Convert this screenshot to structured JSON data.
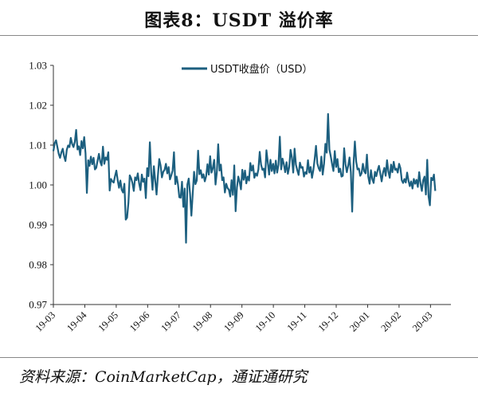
{
  "header": {
    "title": "图表8：USDT 溢价率"
  },
  "footer": {
    "source": "资料来源：CoinMarketCap，通证通研究"
  },
  "chart_data": {
    "type": "line",
    "title": "图表8：USDT 溢价率",
    "xlabel": "",
    "ylabel": "",
    "ylim": [
      0.97,
      1.03
    ],
    "yticks": [
      "1.03",
      "1.02",
      "1.01",
      "1.00",
      "0.99",
      "0.98",
      "0.97"
    ],
    "xticks": [
      "19-03",
      "19-04",
      "19-05",
      "19-06",
      "19-07",
      "19-08",
      "19-09",
      "19-10",
      "19-11",
      "19-12",
      "20-01",
      "20-02",
      "20-03"
    ],
    "grid": false,
    "legend_position": "top-center",
    "color": "#1c5f7f",
    "series": [
      {
        "name": "USDT收盘价（USD）",
        "values": [
          1.0085,
          1.0105,
          1.0112,
          1.0095,
          1.0078,
          1.0068,
          1.0082,
          1.0091,
          1.0072,
          1.006,
          1.0088,
          1.0099,
          1.0095,
          1.0118,
          1.0103,
          1.0095,
          1.0108,
          1.0138,
          1.0089,
          1.0097,
          1.0075,
          1.011,
          1.0092,
          1.012,
          1.0079,
          0.998,
          1.0062,
          1.0048,
          1.0071,
          1.0052,
          1.0068,
          1.0039,
          1.0043,
          1.0061,
          1.0078,
          1.0058,
          1.0049,
          1.0096,
          1.0053,
          1.0069,
          1.0063,
          1.0082,
          0.9986,
          1.0015,
          1.0009,
          1.0006,
          1.0022,
          1.0036,
          1.0012,
          0.9993,
          1.0011,
          0.9988,
          0.9981,
          1.0003,
          0.9913,
          0.9918,
          0.9955,
          1.0024,
          1.0017,
          1.0005,
          0.9985,
          1.0019,
          1.0012,
          1.0029,
          1.0004,
          0.9987,
          1.0026,
          1.0008,
          1.0016,
          0.9967,
          1.0042,
          1.0022,
          1.0107,
          1.0031,
          0.9988,
          1.0047,
          1.0011,
          0.9976,
          1.0023,
          1.0065,
          1.0049,
          1.0019,
          1.0033,
          1.0038,
          1.0053,
          1.0029,
          1.0045,
          1.0014,
          1.0024,
          1.0036,
          1.0082,
          1.0002,
          1.0021,
          1.0001,
          0.9969,
          0.9968,
          1.0008,
          0.9945,
          0.9991,
          0.9855,
          1.0001,
          1.0016,
          0.9978,
          0.9923,
          0.9978,
          1.0033,
          1.0002,
          1.0011,
          1.0086,
          1.0027,
          1.0037,
          1.0018,
          1.0027,
          1.0009,
          1.0022,
          1.0052,
          1.0026,
          1.0072,
          1.0031,
          1.0042,
          1.0063,
          1.0001,
          1.0032,
          1.0102,
          1.0036,
          1.0051,
          1.0012,
          1.0019,
          0.9981,
          1.0003,
          0.9992,
          0.9988,
          0.9971,
          1.0012,
          0.9975,
          1.0049,
          0.9934,
          0.9994,
          1.0021,
          1.0008,
          0.9989,
          1.0038,
          1.0013,
          1.0036,
          1.0004,
          1.0021,
          1.0011,
          1.0055,
          1.0036,
          1.0049,
          1.0018,
          1.0029,
          1.0023,
          1.0039,
          1.0083,
          1.0051,
          1.0038,
          1.0041,
          1.0019,
          1.0087,
          1.0058,
          1.0026,
          1.0063,
          1.0035,
          1.0053,
          1.0029,
          1.0061,
          1.0031,
          1.0051,
          1.0121,
          1.0039,
          1.0066,
          1.0052,
          1.0032,
          1.0057,
          1.0028,
          1.0045,
          1.0088,
          1.0069,
          1.0031,
          1.0091,
          1.0051,
          1.0037,
          1.0025,
          1.0056,
          1.0043,
          1.0045,
          1.0021,
          1.0032,
          1.0028,
          1.0062,
          1.0031,
          1.0045,
          1.0018,
          1.0037,
          1.0065,
          1.0098,
          1.0054,
          1.0042,
          1.0035,
          1.0071,
          1.0026,
          1.0053,
          1.0103,
          1.0081,
          1.0178,
          1.0089,
          1.0072,
          1.0052,
          1.0035,
          1.0085,
          1.0045,
          1.0065,
          1.0032,
          1.0041,
          1.0021,
          1.0023,
          1.0092,
          1.0052,
          1.0032,
          1.0048,
          1.0069,
          1.0032,
          0.9933,
          1.0052,
          1.0109,
          1.0058,
          1.0039,
          1.0041,
          1.0023,
          1.0029,
          1.0053,
          1.0034,
          1.0029,
          1.0076,
          1.0021,
          1.0003,
          1.0037,
          1.0015,
          1.0005,
          1.0033,
          1.0022,
          1.0037,
          1.0048,
          1.0028,
          1.0009,
          1.0031,
          1.0043,
          1.0023,
          1.0062,
          1.0034,
          1.0018,
          1.0051,
          1.0032,
          1.0058,
          1.0038,
          1.0041,
          1.0031,
          1.0053,
          1.0042,
          1.0012,
          1.0005,
          1.0015,
          1.0006,
          1.0031,
          1.0011,
          0.9997,
          1.0009,
          0.9991,
          1.0015,
          1.0003,
          1.0013,
          0.9995,
          1.0032,
          1.0003,
          0.9985,
          1.0012,
          1.0021,
          0.9976,
          1.0063,
          0.9971,
          0.9949,
          1.0018,
          1.0012,
          1.0026,
          0.9985
        ]
      }
    ]
  }
}
